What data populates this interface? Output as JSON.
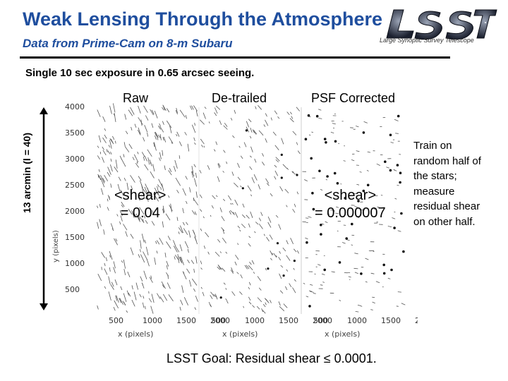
{
  "slide": {
    "title": "Weak Lensing Through the Atmosphere",
    "subtitle": "Data from Prime-Cam on 8-m Subaru",
    "logo_tagline": "Large Synoptic Survey Telescope",
    "exposure_note": "Single 10 sec exposure in 0.65 arcsec seeing.",
    "side_label": "13 arcmin  (l = 40)",
    "goal": "LSST Goal: Residual shear ≤ 0.0001."
  },
  "panels": [
    {
      "label": "Raw",
      "shear_line1": "<shear>",
      "shear_line2": "= 0.04"
    },
    {
      "label": "De-trailed"
    },
    {
      "label": "PSF Corrected",
      "shear_line1": "<shear>",
      "shear_line2": "= 0.000007"
    }
  ],
  "axes": {
    "y_label": "y (pixels)",
    "x_label": "x (pixels)",
    "y_ticks": [
      "4000",
      "3500",
      "3000",
      "2500",
      "2000",
      "1500",
      "1000",
      "500"
    ],
    "x_ticks": [
      "500",
      "1000",
      "1500",
      "2000"
    ]
  },
  "right_note": [
    "Train on",
    "random half of",
    "the stars;",
    "measure",
    "residual shear",
    "on other half."
  ],
  "colors": {
    "title": "#1f4e9e",
    "subtitle": "#1f4e9e"
  }
}
